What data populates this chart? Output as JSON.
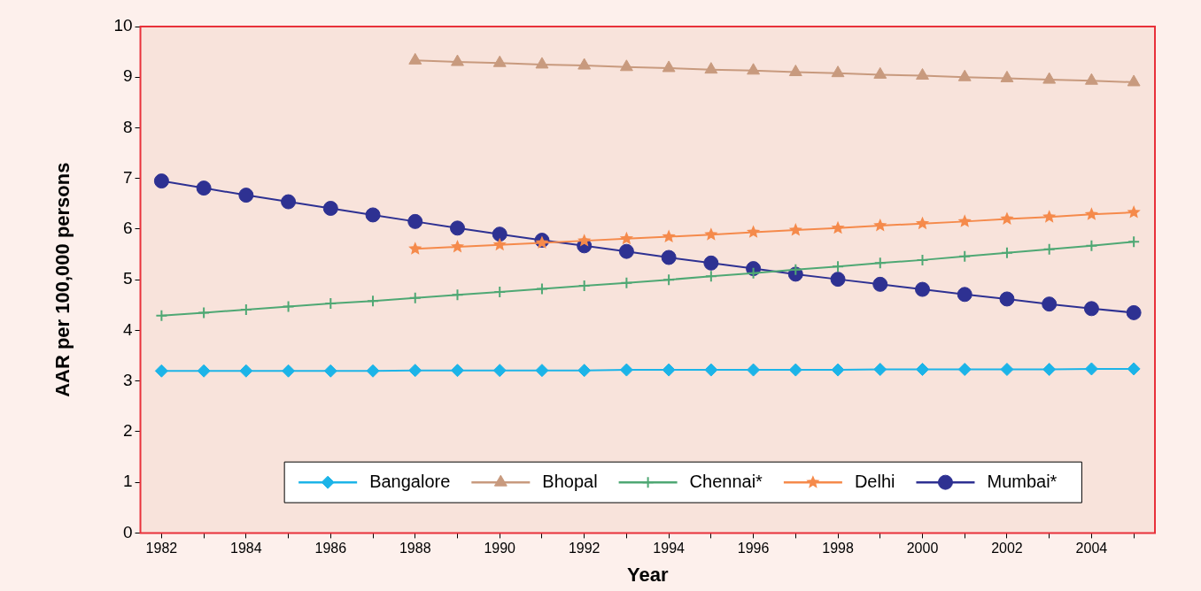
{
  "chart_data": {
    "type": "line",
    "xlabel": "Year",
    "ylabel": "AAR per 100,000 persons",
    "categories": [
      "1982",
      null,
      "1984",
      null,
      "1986",
      null,
      "1988",
      null,
      "1990",
      null,
      "1992",
      null,
      "1994",
      null,
      "1996",
      null,
      "1998",
      null,
      "2000",
      null,
      "2002",
      null,
      "2004",
      null
    ],
    "ylim": [
      0,
      10
    ],
    "yticks": [
      0,
      1,
      2,
      3,
      4,
      5,
      6,
      7,
      8,
      9,
      10
    ],
    "grid": false,
    "legend": "bottom",
    "line_style": "solid",
    "series": [
      {
        "name": "Bangalore",
        "color": "#1cb4e8",
        "marker": "diamond",
        "values": [
          3.2,
          3.2,
          3.2,
          3.2,
          3.2,
          3.2,
          3.21,
          3.21,
          3.21,
          3.21,
          3.21,
          3.22,
          3.22,
          3.22,
          3.22,
          3.22,
          3.22,
          3.23,
          3.23,
          3.23,
          3.23,
          3.23,
          3.24,
          3.24
        ]
      },
      {
        "name": "Bhopal",
        "color": "#c89a7e",
        "marker": "triangle",
        "values": [
          null,
          null,
          null,
          null,
          null,
          null,
          9.33,
          9.3,
          9.28,
          9.25,
          9.23,
          9.2,
          9.18,
          9.15,
          9.13,
          9.1,
          9.08,
          9.05,
          9.03,
          9.0,
          8.98,
          8.95,
          8.93,
          8.9
        ]
      },
      {
        "name": "Chennai*",
        "color": "#4fa874",
        "marker": "cross",
        "values": [
          4.29,
          4.35,
          4.41,
          4.47,
          4.53,
          4.58,
          4.64,
          4.7,
          4.76,
          4.82,
          4.88,
          4.94,
          5.0,
          5.07,
          5.13,
          5.2,
          5.26,
          5.33,
          5.39,
          5.46,
          5.53,
          5.6,
          5.67,
          5.75
        ]
      },
      {
        "name": "Delhi",
        "color": "#f58a4b",
        "marker": "star",
        "values": [
          null,
          null,
          null,
          null,
          null,
          null,
          5.61,
          5.65,
          5.69,
          5.73,
          5.77,
          5.81,
          5.85,
          5.89,
          5.94,
          5.98,
          6.02,
          6.07,
          6.11,
          6.15,
          6.2,
          6.24,
          6.29,
          6.33
        ]
      },
      {
        "name": "Mumbai*",
        "color": "#2e3192",
        "marker": "circle",
        "values": [
          6.95,
          6.81,
          6.67,
          6.54,
          6.41,
          6.28,
          6.15,
          6.02,
          5.9,
          5.78,
          5.67,
          5.56,
          5.44,
          5.33,
          5.22,
          5.11,
          5.01,
          4.91,
          4.81,
          4.71,
          4.62,
          4.52,
          4.43,
          4.35
        ]
      }
    ]
  }
}
